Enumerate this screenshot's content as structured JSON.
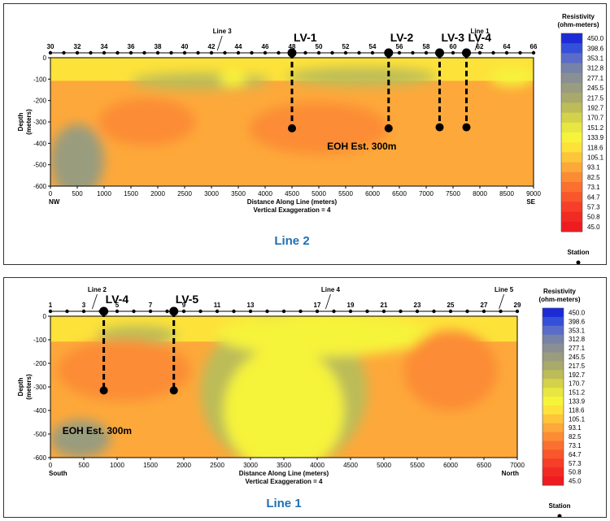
{
  "chart_data": [
    {
      "type": "heatmap",
      "title": "Line 2",
      "xlabel": "Distance Along Line (meters)",
      "ylabel": "Depth (meters)",
      "subtitle": "Vertical Exaggeration = 4",
      "xlim": [
        0,
        9000
      ],
      "ylim": [
        -600,
        0
      ],
      "x_ticks": [
        0,
        500,
        1000,
        1500,
        2000,
        2500,
        3000,
        3500,
        4000,
        4500,
        5000,
        5500,
        6000,
        6500,
        7000,
        7500,
        8000,
        8500,
        9000
      ],
      "y_ticks": [
        0,
        -100,
        -200,
        -300,
        -400,
        -500,
        -600
      ],
      "end_labels": {
        "left": "NW",
        "right": "SE"
      },
      "stations": [
        {
          "label": "30",
          "x": 0
        },
        {
          "label": "32",
          "x": 500
        },
        {
          "label": "34",
          "x": 1000
        },
        {
          "label": "36",
          "x": 1500
        },
        {
          "label": "38",
          "x": 2000
        },
        {
          "label": "40",
          "x": 2500
        },
        {
          "label": "42",
          "x": 3000
        },
        {
          "label": "44",
          "x": 3500
        },
        {
          "label": "46",
          "x": 4000
        },
        {
          "label": "48",
          "x": 4500
        },
        {
          "label": "50",
          "x": 5000
        },
        {
          "label": "52",
          "x": 5500
        },
        {
          "label": "54",
          "x": 6000
        },
        {
          "label": "56",
          "x": 6500
        },
        {
          "label": "58",
          "x": 7000
        },
        {
          "label": "60",
          "x": 7500
        },
        {
          "label": "62",
          "x": 8000
        },
        {
          "label": "64",
          "x": 8500
        },
        {
          "label": "66",
          "x": 9000
        }
      ],
      "crossing_lines": [
        {
          "label": "Line 3",
          "x": 3200
        },
        {
          "label": "Line 1",
          "x": 8000
        }
      ],
      "drill_holes": [
        {
          "label": "LV-1",
          "x": 4500,
          "depth": -330
        },
        {
          "label": "LV-2",
          "x": 6300,
          "depth": -330
        },
        {
          "label": "LV-3",
          "x": 7250,
          "depth": -325
        },
        {
          "label": "LV-4",
          "x": 7750,
          "depth": -325
        }
      ],
      "annotation": "EOH Est. 300m",
      "annotation_pos": {
        "x": 5800,
        "y": -430
      },
      "anomalies": [
        {
          "cx": 500,
          "cy": -480,
          "rx": 500,
          "ry": 170,
          "level": 5
        },
        {
          "cx": 2800,
          "cy": -110,
          "rx": 1300,
          "ry": 40,
          "level": 7
        },
        {
          "cx": 3400,
          "cy": -100,
          "rx": 250,
          "ry": 35,
          "level": 10
        },
        {
          "cx": 5800,
          "cy": -90,
          "rx": 1400,
          "ry": 45,
          "level": 7
        },
        {
          "cx": 8600,
          "cy": -90,
          "rx": 400,
          "ry": 45,
          "level": 10
        },
        {
          "cx": 1800,
          "cy": -300,
          "rx": 900,
          "ry": 110,
          "level": 14
        },
        {
          "cx": 5000,
          "cy": -330,
          "rx": 1300,
          "ry": 120,
          "level": 14
        },
        {
          "cx": 7100,
          "cy": -260,
          "rx": 900,
          "ry": 90,
          "level": 13
        }
      ]
    },
    {
      "type": "heatmap",
      "title": "Line 1",
      "xlabel": "Distance Along Line (meters)",
      "ylabel": "Depth (meters)",
      "subtitle": "Vertical Exaggeration = 4",
      "xlim": [
        0,
        7000
      ],
      "ylim": [
        -600,
        0
      ],
      "x_ticks": [
        0,
        500,
        1000,
        1500,
        2000,
        2500,
        3000,
        3500,
        4000,
        4500,
        5000,
        5500,
        6000,
        6500,
        7000
      ],
      "y_ticks": [
        0,
        -100,
        -200,
        -300,
        -400,
        -500,
        -600
      ],
      "end_labels": {
        "left": "South",
        "right": "North"
      },
      "stations": [
        {
          "label": "1",
          "x": 0
        },
        {
          "label": "3",
          "x": 500
        },
        {
          "label": "5",
          "x": 1000
        },
        {
          "label": "7",
          "x": 1500
        },
        {
          "label": "9",
          "x": 2000
        },
        {
          "label": "11",
          "x": 2500
        },
        {
          "label": "13",
          "x": 3000
        },
        {
          "label": "17",
          "x": 4000
        },
        {
          "label": "19",
          "x": 4500
        },
        {
          "label": "21",
          "x": 5000
        },
        {
          "label": "23",
          "x": 5500
        },
        {
          "label": "25",
          "x": 6000
        },
        {
          "label": "27",
          "x": 6500
        },
        {
          "label": "29",
          "x": 7000
        }
      ],
      "crossing_lines": [
        {
          "label": "Line 2",
          "x": 700
        },
        {
          "label": "Line 4",
          "x": 4200
        },
        {
          "label": "Line 5",
          "x": 6800
        }
      ],
      "drill_holes": [
        {
          "label": "LV-4",
          "x": 800,
          "depth": -315
        },
        {
          "label": "LV-5",
          "x": 1850,
          "depth": -315
        }
      ],
      "annotation": "EOH Est. 300m",
      "annotation_pos": {
        "x": 700,
        "y": -500
      },
      "anomalies": [
        {
          "cx": 3500,
          "cy": -320,
          "rx": 1250,
          "ry": 330,
          "level": 7
        },
        {
          "cx": 3500,
          "cy": -400,
          "rx": 900,
          "ry": 270,
          "level": 10
        },
        {
          "cx": 4100,
          "cy": -80,
          "rx": 1600,
          "ry": 90,
          "level": 10
        },
        {
          "cx": 1300,
          "cy": -80,
          "rx": 600,
          "ry": 40,
          "level": 7
        },
        {
          "cx": 1100,
          "cy": -230,
          "rx": 1000,
          "ry": 130,
          "level": 14
        },
        {
          "cx": 6000,
          "cy": -230,
          "rx": 700,
          "ry": 170,
          "level": 14
        },
        {
          "cx": 450,
          "cy": -520,
          "rx": 450,
          "ry": 80,
          "level": 5
        }
      ]
    }
  ],
  "colorbar": {
    "title_line1": "Resistivity",
    "title_line2": "(ohm-meters)",
    "values": [
      "450.0",
      "398.6",
      "353.1",
      "312.8",
      "277.1",
      "245.5",
      "217.5",
      "192.7",
      "170.7",
      "151.2",
      "133.9",
      "118.6",
      "105.1",
      "93.1",
      "82.5",
      "73.1",
      "64.7",
      "57.3",
      "50.8",
      "45.0"
    ],
    "colors": [
      "#1c2bd6",
      "#3550d8",
      "#5a6cc8",
      "#7682a8",
      "#8a8f94",
      "#9a9c7e",
      "#a9a96c",
      "#bcbc58",
      "#d3d24a",
      "#e8e640",
      "#f6f33b",
      "#fde23a",
      "#fdc53a",
      "#fda83a",
      "#fc8c34",
      "#fb7030",
      "#f9562c",
      "#f63e28",
      "#f22a24",
      "#ee1c20"
    ],
    "station_label": "Station"
  }
}
